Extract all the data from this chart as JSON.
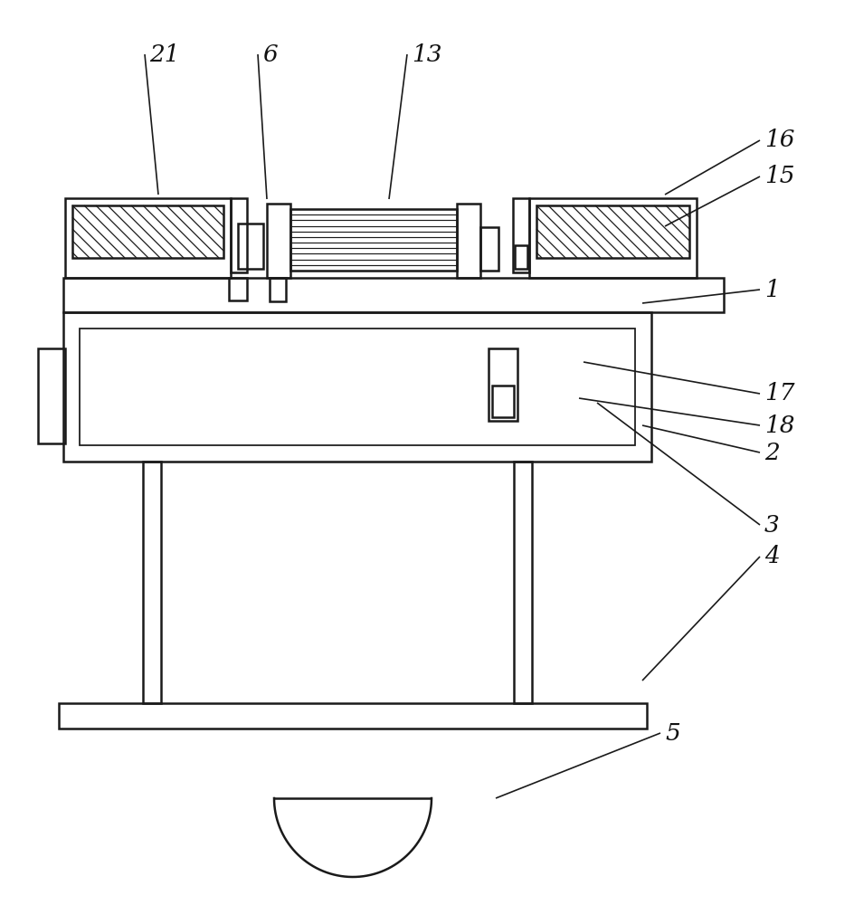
{
  "bg_color": "#ffffff",
  "lc": "#1a1a1a",
  "lw": 1.8,
  "fig_w": 9.44,
  "fig_h": 10.0,
  "labels": [
    [
      "21",
      160,
      940,
      175,
      785
    ],
    [
      "6",
      285,
      940,
      295,
      780
    ],
    [
      "13",
      450,
      940,
      430,
      780
    ],
    [
      "16",
      840,
      845,
      735,
      785
    ],
    [
      "15",
      840,
      805,
      735,
      750
    ],
    [
      "1",
      840,
      680,
      710,
      665
    ],
    [
      "17",
      840,
      565,
      645,
      600
    ],
    [
      "18",
      840,
      530,
      640,
      560
    ],
    [
      "2",
      840,
      500,
      710,
      530
    ],
    [
      "3",
      840,
      420,
      660,
      555
    ],
    [
      "4",
      840,
      385,
      710,
      248
    ],
    [
      "5",
      730,
      190,
      548,
      118
    ]
  ]
}
